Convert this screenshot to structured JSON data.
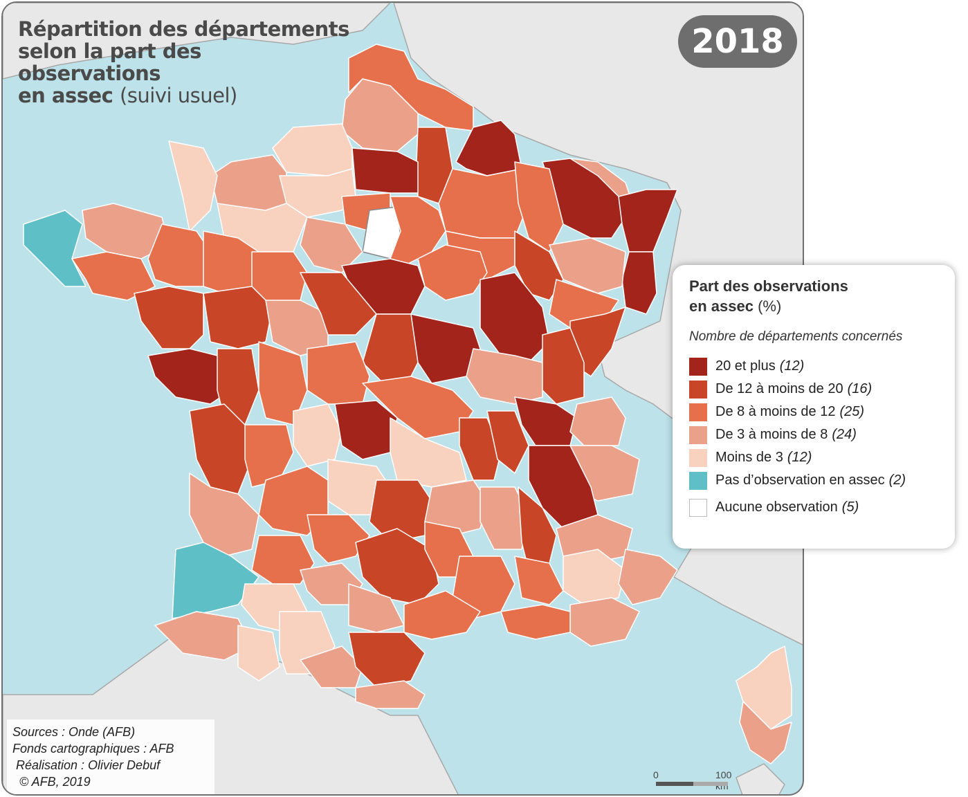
{
  "title": {
    "line1": "Répartition des départements",
    "line2": "selon la part des",
    "line3": "observations",
    "line4_bold": "en assec",
    "line4_light": "(suivi usuel)"
  },
  "year": "2018",
  "legend": {
    "title": "Part des observations",
    "title_line2": "en assec",
    "title_unit": "(%)",
    "subtitle": "Nombre de départements concernés",
    "classes": [
      {
        "label": "20 et plus",
        "count": "(12)",
        "color": "#a2241b"
      },
      {
        "label": "De 12 à moins de 20",
        "count": "(16)",
        "color": "#c94527"
      },
      {
        "label": "De 8 à moins de 12",
        "count": "(25)",
        "color": "#e6704c"
      },
      {
        "label": "De 3 à moins de 8",
        "count": "(24)",
        "color": "#eba08a"
      },
      {
        "label": "Moins de 3",
        "count": "(12)",
        "color": "#f8d1bf"
      },
      {
        "label": "Pas d’observation en assec",
        "count": "(2)",
        "color": "#5fbfc7"
      },
      {
        "label": "Aucune observation",
        "count": "(5)",
        "color": "#ffffff"
      }
    ]
  },
  "credits": {
    "line1": "Sources : Onde (AFB)",
    "line2": "Fonds cartographiques : AFB",
    "line3": " Réalisation : Olivier Debuf",
    "line4": "  © AFB, 2019"
  },
  "scale": {
    "start": "0",
    "end": "100 km"
  },
  "colors": {
    "sea": "#bde2ea",
    "land": "#e8e8e8",
    "border": "#ffffff"
  }
}
